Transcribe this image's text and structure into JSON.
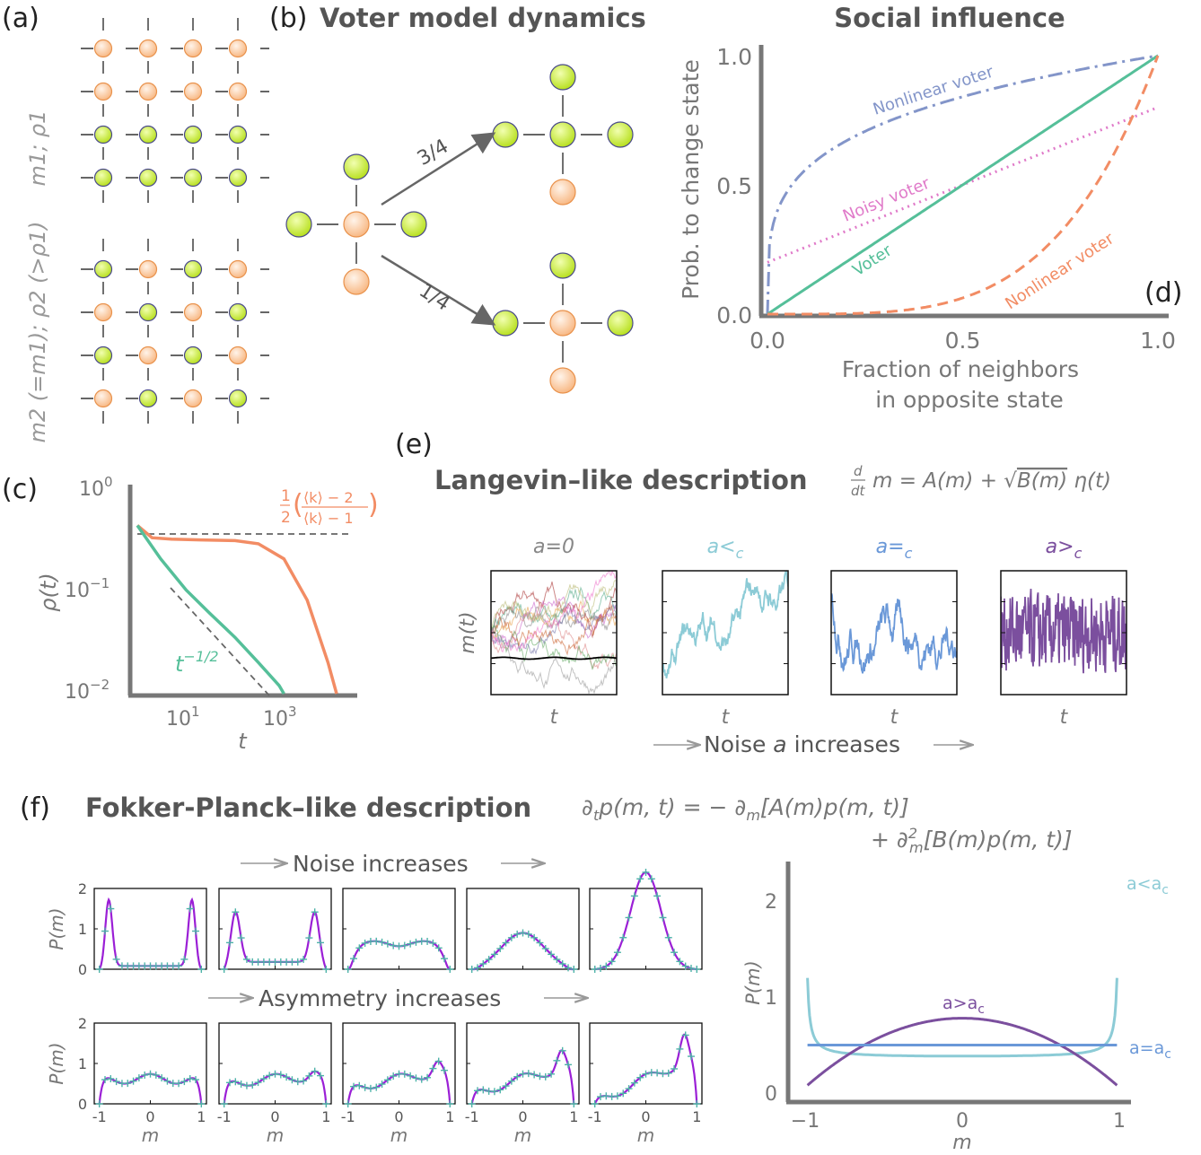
{
  "panel_a": {
    "label": "(a)",
    "rowlabel_top": "m1; ρ1",
    "rowlabel_bottom": "m2 (=m1); ρ2 (>ρ1)",
    "grid_top": [
      [
        "o",
        "o",
        "o",
        "o"
      ],
      [
        "o",
        "o",
        "o",
        "o"
      ],
      [
        "g",
        "g",
        "g",
        "g"
      ],
      [
        "g",
        "g",
        "g",
        "g"
      ]
    ],
    "grid_bottom": [
      [
        "g",
        "o",
        "g",
        "o"
      ],
      [
        "o",
        "g",
        "o",
        "g"
      ],
      [
        "g",
        "o",
        "g",
        "o"
      ],
      [
        "o",
        "g",
        "o",
        "g"
      ]
    ]
  },
  "panel_b": {
    "label": "(b)",
    "title": "Voter model dynamics",
    "prob_up": "3/4",
    "prob_down": "1/4"
  },
  "panel_c": {
    "label": "(c)",
    "xlabel": "t",
    "ylabel": "ρ(t)",
    "yticks": [
      "10^0",
      "10^-1",
      "10^-2"
    ],
    "xticks": [
      "10^1",
      "10^3"
    ],
    "asymptote_label": "1/2 ((k)−2)/((k)−1)",
    "slope_label": "t^-1/2",
    "chart_data": {
      "type": "line",
      "xscale": "log",
      "yscale": "log",
      "ylim": [
        0.01,
        1
      ],
      "series": [
        {
          "name": "1/2 ((k)−2)/((k)−1)",
          "color": "#f28c64",
          "x": [
            1,
            2,
            5,
            20,
            100,
            300,
            1000,
            3000,
            8000,
            12000
          ],
          "y": [
            0.42,
            0.32,
            0.31,
            0.305,
            0.3,
            0.28,
            0.2,
            0.08,
            0.02,
            0.01
          ]
        },
        {
          "name": "t^-1/2",
          "color": "#55bf99",
          "x": [
            1,
            3,
            10,
            30,
            100,
            300,
            800,
            1000
          ],
          "y": [
            0.42,
            0.2,
            0.1,
            0.06,
            0.035,
            0.02,
            0.012,
            0.01
          ]
        }
      ]
    }
  },
  "panel_d": {
    "label": "(d)",
    "title": "Social influence",
    "xlabel_line1": "Fraction of neighbors",
    "xlabel_line2": "in opposite state",
    "ylabel": "Prob. to change state",
    "xticks": [
      "0.0",
      "0.5",
      "1.0"
    ],
    "yticks": [
      "0.0",
      "0.5",
      "1.0"
    ],
    "chart_data": {
      "type": "line",
      "xlim": [
        0,
        1
      ],
      "ylim": [
        0,
        1
      ],
      "series": [
        {
          "name": "Nonlinear voter",
          "style": "dashdot",
          "color": "#8395c9",
          "exponent": 0.25
        },
        {
          "name": "Noisy voter",
          "style": "dotted",
          "color": "#e07ac9",
          "intercept": 0.2,
          "slope": 0.6
        },
        {
          "name": "Voter",
          "style": "solid",
          "color": "#55bf99",
          "exponent": 1
        },
        {
          "name": "Nonlinear voter",
          "style": "dashed",
          "color": "#f28c64",
          "exponent": 4
        }
      ]
    }
  },
  "panel_e": {
    "label": "(e)",
    "title": "Langevin–like description",
    "equation": "d/dt m = A(m) + √B(m) η(t)",
    "ylabel": "m(t)",
    "xlabel": "t",
    "subplots": [
      {
        "title": "a=0",
        "color": "#888888"
      },
      {
        "title": "a<ac",
        "color": "#8ccbd6"
      },
      {
        "title": "a=ac",
        "color": "#6a98d8"
      },
      {
        "title": "a>ac",
        "color": "#7b4f9e"
      }
    ],
    "arrow_text": "Noise a increases"
  },
  "panel_f": {
    "label": "(f)",
    "title": "Fokker-Planck–like description",
    "equation_line1": "∂tp(m,t) = −∂m[A(m)p(m,t)]",
    "equation_line2": "+ ∂m²[B(m)p(m,t)]",
    "noise_text": "Noise increases",
    "asym_text": "Asymmetry increases",
    "ylabel": "P(m)",
    "xlabel": "m",
    "yticks": [
      "0",
      "1",
      "2"
    ],
    "xticks": [
      "-1",
      "0",
      "1"
    ],
    "big": {
      "ylabel": "P(m)",
      "xlabel": "m",
      "xticks": [
        "−1",
        "0",
        "1"
      ],
      "yticks": [
        "0",
        "1",
        "2"
      ],
      "labels": [
        "a<ac",
        "a>ac",
        "a=ac"
      ],
      "chart_data": {
        "type": "line",
        "xlim": [
          -1,
          1
        ],
        "ylim": [
          0,
          2.3
        ],
        "series": [
          {
            "name": "a<ac",
            "color": "#8ccbd6",
            "kind": "u-shape"
          },
          {
            "name": "a>ac",
            "color": "#7b4f9e",
            "kind": "parabola",
            "peak": 0.72
          },
          {
            "name": "a=ac",
            "color": "#6a98d8",
            "kind": "flat",
            "value": 0.5
          }
        ]
      }
    }
  }
}
